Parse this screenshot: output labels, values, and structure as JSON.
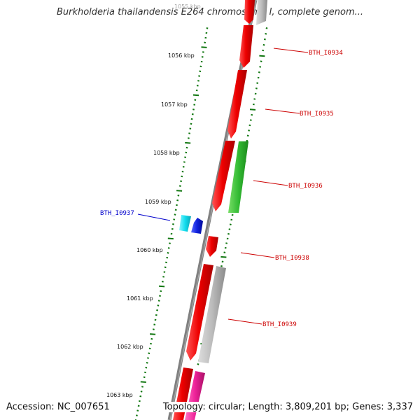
{
  "title": "Burkholderia thailandensis E264 chromosome I, complete genom...",
  "footer": {
    "accession": "Accession: NC_007651",
    "summary": "Topology: circular; Length: 3,809,201 bp; Genes: 3,337"
  },
  "scale_labels": [
    "1055 kbp",
    "1056 kbp",
    "1057 kbp",
    "1058 kbp",
    "1059 kbp",
    "1060 kbp",
    "1061 kbp",
    "1062 kbp",
    "1063 kbp"
  ],
  "gene_labels": [
    {
      "id": "bth-i0934",
      "text": "BTH_I0934",
      "color": "#cc0000"
    },
    {
      "id": "bth-i0935",
      "text": "BTH_I0935",
      "color": "#cc0000"
    },
    {
      "id": "bth-i0936",
      "text": "BTH_I0936",
      "color": "#cc0000"
    },
    {
      "id": "bth-i0937",
      "text": "BTH_I0937",
      "color": "#0000cc"
    },
    {
      "id": "bth-i0938",
      "text": "BTH_I0938",
      "color": "#cc0000"
    },
    {
      "id": "bth-i0939",
      "text": "BTH_I0939",
      "color": "#cc0000"
    }
  ],
  "colors": {
    "backbone": "#808080",
    "tick": "#117711",
    "red_gene": "#ee0000",
    "green_gene": "#33bb33",
    "gray_gene": "#bbbbbb",
    "cyan_gene": "#11ddee",
    "blue_gene": "#1122dd",
    "pink_gene": "#ee2299"
  }
}
